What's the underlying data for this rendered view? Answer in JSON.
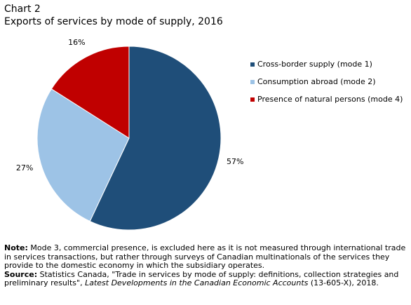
{
  "chart_data": {
    "type": "pie",
    "title": "Chart 2",
    "subtitle": "Exports of services by mode of supply, 2016",
    "categories": [
      "Cross-border supply (mode 1)",
      "Consumption abroad (mode 2)",
      "Presence of natural persons (mode 4)"
    ],
    "values": [
      57,
      27,
      16
    ],
    "value_labels": [
      "57%",
      "27%",
      "16%"
    ],
    "colors": [
      "#1f4e79",
      "#9dc3e6",
      "#c00000"
    ],
    "legend": "right"
  },
  "notes": {
    "note_label": "Note:",
    "note_text": "Mode 3, commercial presence, is excluded here as it is not measured through international trade in  services transactions, but rather through surveys of Canadian multinationals of the services they provide to the domestic economy in which the subsidiary operates.",
    "source_label": "Source:",
    "source_text": "Statistics Canada, \"Trade in services by mode of supply: definitions, collection strategies and preliminary results\",",
    "source_italic": "Latest Developments in the Canadian Economic Accounts",
    "source_end": "(13-605-X), 2018."
  }
}
